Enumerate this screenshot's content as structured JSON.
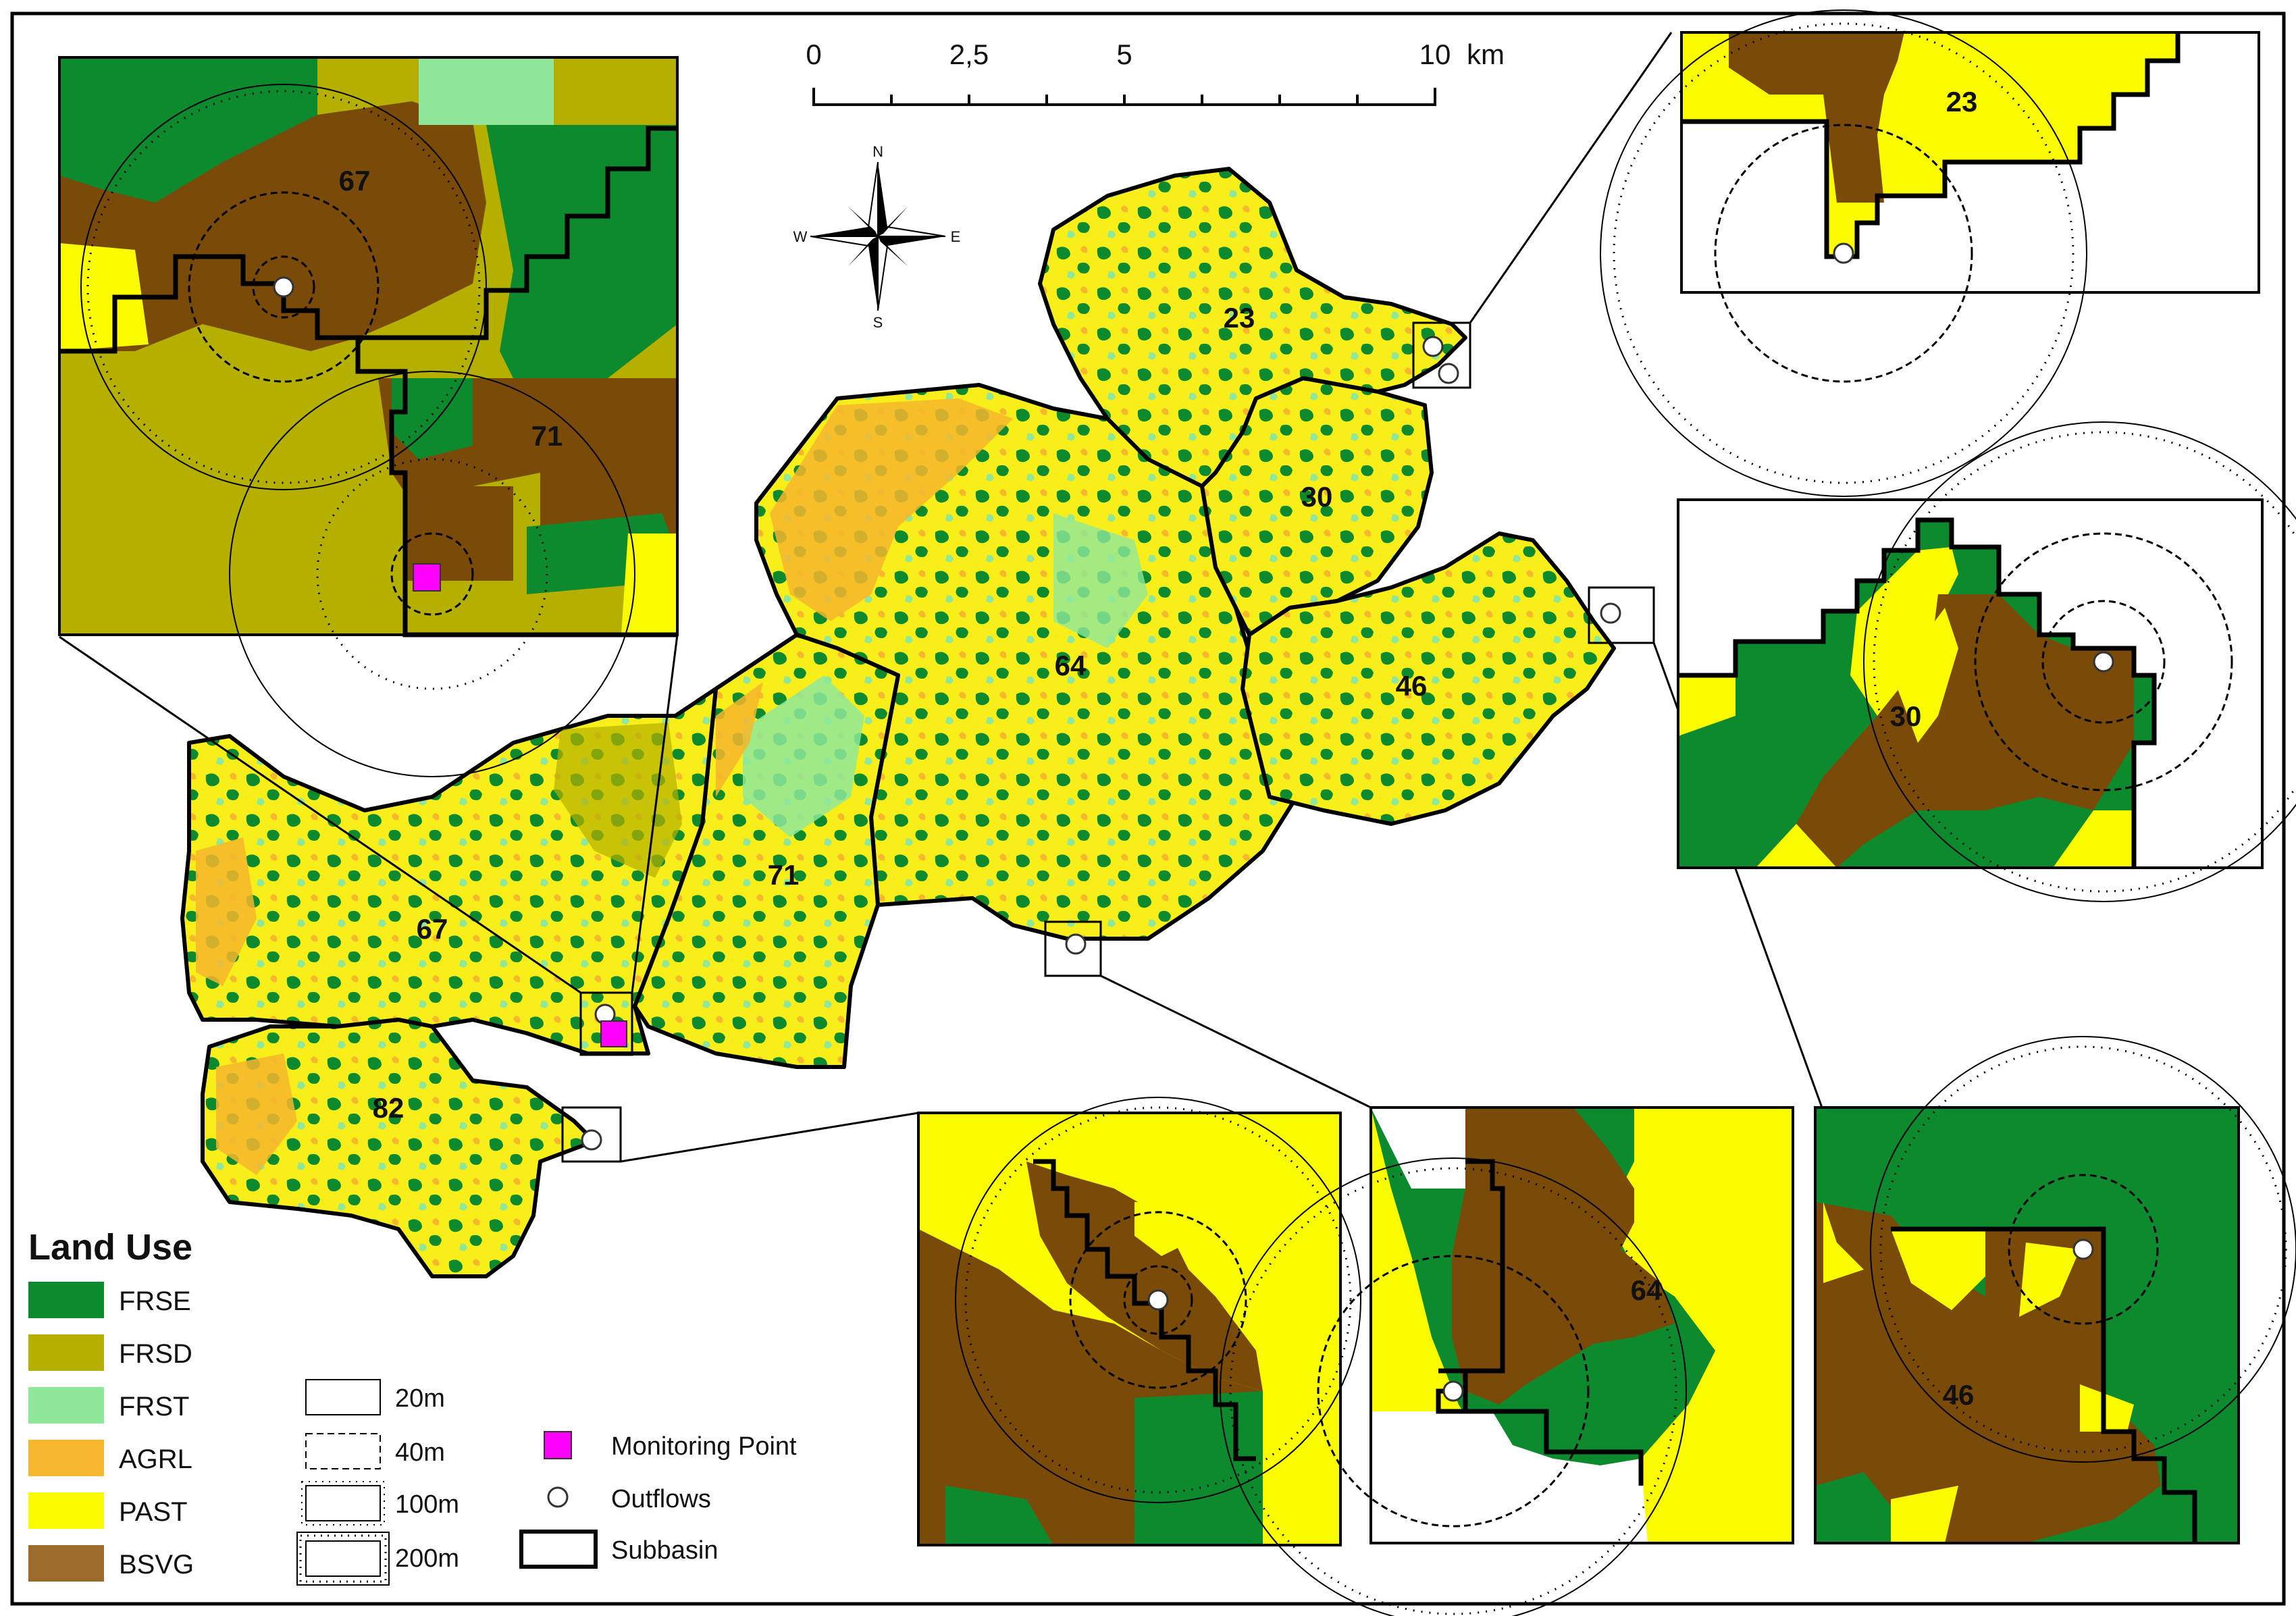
{
  "scale_bar": {
    "ticks": [
      "0",
      "2,5",
      "5",
      "10"
    ],
    "unit": "km"
  },
  "north_arrow": {
    "n": "N",
    "s": "S",
    "e": "E",
    "w": "W"
  },
  "subbasins": [
    {
      "id": "23",
      "label": "23"
    },
    {
      "id": "30",
      "label": "30"
    },
    {
      "id": "46",
      "label": "46"
    },
    {
      "id": "64",
      "label": "64"
    },
    {
      "id": "71",
      "label": "71"
    },
    {
      "id": "67",
      "label": "67"
    },
    {
      "id": "82",
      "label": "82"
    }
  ],
  "insets": [
    {
      "name": "inset-67-71",
      "labels": [
        "67",
        "71"
      ]
    },
    {
      "name": "inset-23",
      "labels": [
        "23"
      ]
    },
    {
      "name": "inset-30",
      "labels": [
        "30"
      ]
    },
    {
      "name": "inset-82",
      "labels": []
    },
    {
      "name": "inset-64",
      "labels": [
        "64"
      ]
    },
    {
      "name": "inset-46",
      "labels": [
        "46"
      ]
    }
  ],
  "legend": {
    "title": "Land Use",
    "items": [
      {
        "code": "FRSE",
        "color": "#0d8a2e"
      },
      {
        "code": "FRSD",
        "color": "#b5b000"
      },
      {
        "code": "FRST",
        "color": "#8fe89a"
      },
      {
        "code": "AGRL",
        "color": "#f6b62e"
      },
      {
        "code": "PAST",
        "color": "#fbfb00"
      },
      {
        "code": "BSVG",
        "color": "#9c6a2a"
      }
    ],
    "buffers": [
      "20m",
      "40m",
      "100m",
      "200m"
    ],
    "symbols": [
      "Monitoring Point",
      "Outflows",
      "Subbasin"
    ]
  },
  "colors": {
    "frse": "#0d8a2e",
    "frsd": "#b5b000",
    "frst": "#8fe89a",
    "agrl": "#f6b62e",
    "past": "#fbfb00",
    "bsvg": "#9c6a2a",
    "inset_brown": "#7a4a08",
    "monitoring": "#ff00ff"
  }
}
